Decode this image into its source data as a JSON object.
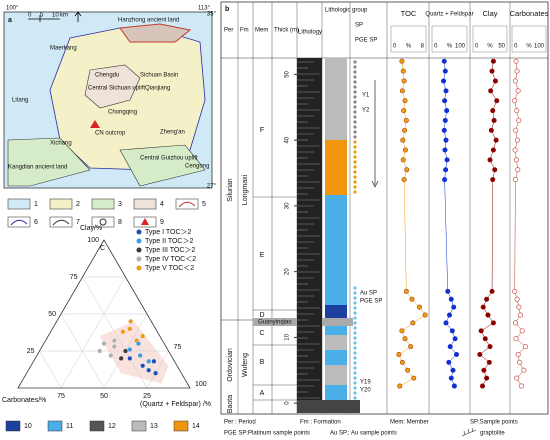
{
  "map": {
    "panel": "a",
    "coords": [
      "100°",
      "113°",
      "35°",
      "27°"
    ],
    "scale": [
      "0",
      "5",
      "10",
      "km"
    ],
    "labels": [
      "Hanzhong ancient land",
      "Maerkang",
      "Chengdu",
      "Central Sichuan uplift",
      "Sichuan Basin",
      "Qianjiang",
      "Chongqing",
      "Litang",
      "CN outcrop",
      "Zheng'an",
      "Xichang",
      "Kangdian ancient land",
      "Central Guizhou uplift",
      "Cengong"
    ],
    "legend": [
      "1",
      "2",
      "3",
      "4",
      "5",
      "6",
      "7",
      "8",
      "9"
    ]
  },
  "ternary": {
    "axis_top": "Clay/%",
    "apex": "C",
    "axis_left": "Carbonates/%",
    "axis_right": "(Quartz + Feldspar) /%",
    "clay_ticks": [
      25,
      50,
      75,
      100
    ],
    "carb_ticks": [
      25,
      50,
      75
    ],
    "qf_ticks": [
      75,
      100
    ],
    "types": [
      {
        "name": "Type I   TOC＞2",
        "color": "#1d4fb8"
      },
      {
        "name": "Type II  TOC＞2",
        "color": "#3d9be6"
      },
      {
        "name": "Type III TOC＞2",
        "color": "#3a3a3a"
      },
      {
        "name": "Type IV  TOC＜2",
        "color": "#b0b0b0"
      },
      {
        "name": "Type V   TOC＜2",
        "color": "#ee9a1a"
      }
    ],
    "points": [
      {
        "type": 4,
        "clay": 40,
        "carb": 15,
        "qf": 45
      },
      {
        "type": 4,
        "clay": 35,
        "carb": 10,
        "qf": 55
      },
      {
        "type": 4,
        "clay": 38,
        "carb": 20,
        "qf": 42
      },
      {
        "type": 4,
        "clay": 45,
        "carb": 12,
        "qf": 43
      },
      {
        "type": 4,
        "clay": 32,
        "carb": 15,
        "qf": 53
      },
      {
        "type": 3,
        "clay": 30,
        "carb": 35,
        "qf": 35
      },
      {
        "type": 3,
        "clay": 28,
        "carb": 30,
        "qf": 42
      },
      {
        "type": 3,
        "clay": 25,
        "carb": 40,
        "qf": 35
      },
      {
        "type": 3,
        "clay": 32,
        "carb": 28,
        "qf": 40
      },
      {
        "type": 3,
        "clay": 22,
        "carb": 35,
        "qf": 43
      },
      {
        "type": 2,
        "clay": 20,
        "carb": 30,
        "qf": 50
      },
      {
        "type": 2,
        "clay": 25,
        "carb": 25,
        "qf": 50
      },
      {
        "type": 1,
        "clay": 30,
        "carb": 15,
        "qf": 55
      },
      {
        "type": 1,
        "clay": 22,
        "carb": 18,
        "qf": 60
      },
      {
        "type": 1,
        "clay": 18,
        "carb": 15,
        "qf": 67
      },
      {
        "type": 1,
        "clay": 26,
        "carb": 22,
        "qf": 52
      },
      {
        "type": 0,
        "clay": 15,
        "carb": 20,
        "qf": 65
      },
      {
        "type": 0,
        "clay": 12,
        "carb": 18,
        "qf": 70
      },
      {
        "type": 0,
        "clay": 18,
        "carb": 12,
        "qf": 70
      },
      {
        "type": 0,
        "clay": 10,
        "carb": 15,
        "qf": 75
      },
      {
        "type": 0,
        "clay": 20,
        "carb": 25,
        "qf": 55
      }
    ]
  },
  "lith_legend": [
    "10",
    "11",
    "12",
    "13",
    "14"
  ],
  "strat": {
    "panel": "b",
    "headers": [
      "Per",
      "Fm",
      "Mem",
      "Thick (m)",
      "Lithology",
      "Lithologic group",
      "SP",
      "PGE SP"
    ],
    "periods": [
      "Silurian",
      "Ordovician"
    ],
    "formations": [
      "Longmaxi",
      "Wufeng"
    ],
    "members": [
      "F",
      "E",
      "D",
      "C",
      "B",
      "A"
    ],
    "beds": [
      "Guanyinqiao",
      "Baota"
    ],
    "sample_labels": [
      "Y1",
      "Y2",
      "Au SP",
      "PGE SP",
      "Y19",
      "Y20"
    ],
    "ylim": [
      -1.5,
      52.5
    ],
    "yticks": [
      0,
      10,
      20,
      30,
      40,
      50
    ],
    "thickness": [
      52,
      50.5,
      49,
      47.5,
      46,
      44.5,
      43,
      41.5,
      40,
      38.5,
      37,
      35.5,
      34,
      17,
      15.8,
      14.6,
      13.4,
      12.2,
      11,
      9.8,
      8.6,
      7.4,
      6.2,
      5,
      3.8,
      2.6
    ],
    "series": [
      {
        "name": "TOC",
        "color": "#f39c12",
        "unit": "%",
        "xlim": [
          0,
          8
        ],
        "values": [
          2.5,
          2.8,
          3,
          2.6,
          3.2,
          2.9,
          3.5,
          3.1,
          2.7,
          3.3,
          2.8,
          3.6,
          3.0,
          3.5,
          4.8,
          6.5,
          7.8,
          5.0,
          2.5,
          3.2,
          4.5,
          1.8,
          2.6,
          3.8,
          5.2,
          2.0
        ]
      },
      {
        "name": "Quartz + Feldspar",
        "color": "#1030d0",
        "unit": "%",
        "xlim": [
          0,
          100
        ],
        "values": [
          35,
          38,
          33,
          40,
          36,
          42,
          38,
          35,
          40,
          37,
          43,
          39,
          36,
          45,
          55,
          62,
          50,
          40,
          58,
          66,
          52,
          70,
          48,
          60,
          55,
          64
        ]
      },
      {
        "name": "Clay",
        "color": "#8b0000",
        "unit": "%",
        "xlim": [
          0,
          50
        ],
        "values": [
          30,
          28,
          33,
          26,
          35,
          29,
          31,
          27,
          34,
          30,
          25,
          32,
          29,
          28,
          20,
          15,
          22,
          30,
          12,
          18,
          25,
          10,
          24,
          16,
          20,
          14
        ]
      },
      {
        "name": "Carbonates",
        "color": "#c0392b",
        "unit": "%",
        "xlim": [
          0,
          100
        ],
        "values": [
          12,
          15,
          10,
          18,
          8,
          14,
          20,
          11,
          16,
          9,
          13,
          17,
          10,
          8,
          15,
          20,
          25,
          10,
          30,
          12,
          40,
          18,
          22,
          35,
          14,
          28
        ]
      }
    ],
    "footer": [
      "Per : Period",
      "Fm : Formation",
      "Mem: Member",
      "SP:Sample points",
      "PGE SP:Platinum sample points",
      "Au SP.: Au sample points",
      "graptolite"
    ]
  }
}
